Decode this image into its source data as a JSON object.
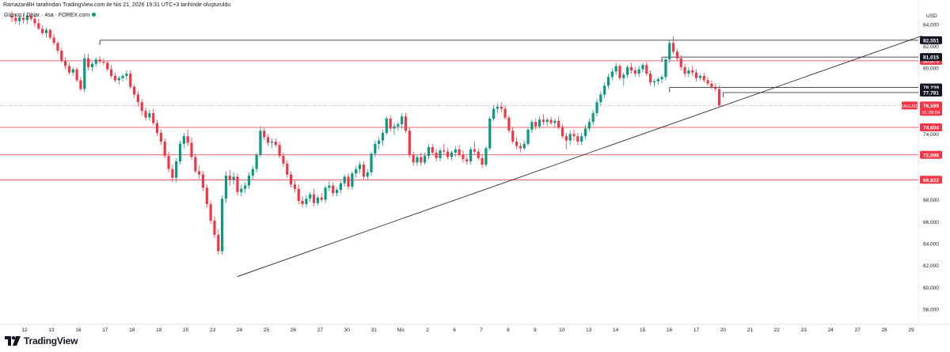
{
  "header": {
    "attribution": "RamazanBH tarafından TradingView.com ile Nis 21, 2026 19:31 UTC+3 tarihinde oluşturuldu",
    "symbol_line": "Gümüş / Dolar · 4sa · FOREX.com"
  },
  "footer": {
    "brand": "TradingView"
  },
  "chart_data": {
    "type": "candlestick",
    "currency_label": "USD",
    "ylim": [
      57000,
      85500
    ],
    "y_ticks": [
      58000,
      60000,
      62000,
      64000,
      66000,
      68000,
      70000,
      72000,
      74000,
      76000,
      78000,
      80000,
      82000,
      84000
    ],
    "y_tick_labels": [
      "58,000",
      "60,000",
      "62,000",
      "64,000",
      "66,000",
      "68,000",
      "70,000",
      "72,000",
      "74,000",
      "76,000",
      "78,000",
      "80,000",
      "82,000",
      "84,000"
    ],
    "x_labels": [
      "12",
      "13",
      "16",
      "17",
      "18",
      "19",
      "20",
      "23",
      "24",
      "25",
      "26",
      "27",
      "30",
      "31",
      "Nis",
      "2",
      "6",
      "7",
      "8",
      "9",
      "10",
      "13",
      "14",
      "15",
      "16",
      "17",
      "20",
      "21",
      "22",
      "23",
      "24",
      "27",
      "28",
      "29"
    ],
    "ohlc": [
      [
        84800,
        85200,
        84200,
        84600
      ],
      [
        84600,
        84900,
        84000,
        84300
      ],
      [
        84300,
        84800,
        83900,
        84600
      ],
      [
        84600,
        85000,
        84100,
        84400
      ],
      [
        84400,
        84900,
        84000,
        84800
      ],
      [
        84800,
        85100,
        84300,
        84500
      ],
      [
        84500,
        84800,
        83800,
        84100
      ],
      [
        84100,
        84500,
        83500,
        83600
      ],
      [
        83600,
        83900,
        83000,
        83200
      ],
      [
        83200,
        83700,
        82800,
        83500
      ],
      [
        83500,
        83600,
        82600,
        82800
      ],
      [
        82800,
        83100,
        82100,
        82300
      ],
      [
        82300,
        82500,
        81300,
        81600
      ],
      [
        81600,
        81900,
        80500,
        80700
      ],
      [
        80700,
        81000,
        79900,
        80200
      ],
      [
        80200,
        80500,
        79400,
        79600
      ],
      [
        79600,
        80100,
        79300,
        79900
      ],
      [
        79900,
        80100,
        78700,
        78900
      ],
      [
        78900,
        79200,
        77900,
        78100
      ],
      [
        78100,
        81300,
        77800,
        80900
      ],
      [
        80900,
        81300,
        79800,
        80100
      ],
      [
        80100,
        80600,
        79700,
        80400
      ],
      [
        80400,
        81000,
        80100,
        80800
      ],
      [
        80800,
        81100,
        80400,
        80600
      ],
      [
        80600,
        80900,
        80300,
        80500
      ],
      [
        80500,
        80700,
        79700,
        79900
      ],
      [
        79900,
        80300,
        79100,
        79300
      ],
      [
        79300,
        79600,
        78700,
        78900
      ],
      [
        78900,
        79300,
        78500,
        79100
      ],
      [
        79100,
        79500,
        78800,
        79300
      ],
      [
        79300,
        79800,
        78900,
        79500
      ],
      [
        79500,
        79800,
        78100,
        78300
      ],
      [
        78300,
        78500,
        77300,
        77600
      ],
      [
        77600,
        77900,
        76500,
        76900
      ],
      [
        76900,
        77200,
        75700,
        76100
      ],
      [
        76100,
        76400,
        75200,
        75500
      ],
      [
        75500,
        76200,
        75200,
        75900
      ],
      [
        75900,
        76300,
        74800,
        75000
      ],
      [
        75000,
        75300,
        73800,
        74100
      ],
      [
        74100,
        74400,
        73000,
        73300
      ],
      [
        73300,
        73600,
        71800,
        72000
      ],
      [
        72000,
        72400,
        70500,
        70800
      ],
      [
        70800,
        71200,
        69600,
        70000
      ],
      [
        70000,
        71800,
        69600,
        71500
      ],
      [
        71500,
        73400,
        71200,
        73100
      ],
      [
        73100,
        74100,
        72700,
        73800
      ],
      [
        73800,
        74400,
        72900,
        73200
      ],
      [
        73200,
        73700,
        71600,
        71900
      ],
      [
        71900,
        72200,
        70400,
        70600
      ],
      [
        70600,
        71100,
        69900,
        70300
      ],
      [
        70300,
        70600,
        68800,
        69100
      ],
      [
        69100,
        69400,
        67300,
        67600
      ],
      [
        67600,
        67900,
        65800,
        66100
      ],
      [
        66100,
        66500,
        64500,
        64800
      ],
      [
        64800,
        65300,
        63000,
        63300
      ],
      [
        63300,
        68400,
        63000,
        68100
      ],
      [
        68100,
        70600,
        67700,
        70200
      ],
      [
        70200,
        70700,
        69300,
        69800
      ],
      [
        69800,
        70500,
        69400,
        70100
      ],
      [
        70100,
        70400,
        68400,
        68700
      ],
      [
        68700,
        69400,
        68300,
        69000
      ],
      [
        69000,
        69600,
        68600,
        69300
      ],
      [
        69300,
        70500,
        69000,
        70200
      ],
      [
        70200,
        71100,
        69800,
        70800
      ],
      [
        70800,
        72300,
        70500,
        72100
      ],
      [
        72100,
        74700,
        71900,
        74300
      ],
      [
        74300,
        74600,
        73400,
        73700
      ],
      [
        73700,
        74000,
        72900,
        73200
      ],
      [
        73200,
        73600,
        72700,
        73300
      ],
      [
        73300,
        73600,
        72800,
        73000
      ],
      [
        73000,
        73300,
        71800,
        72000
      ],
      [
        72000,
        72300,
        71000,
        71300
      ],
      [
        71300,
        71600,
        70000,
        70300
      ],
      [
        70300,
        70600,
        69100,
        69400
      ],
      [
        69400,
        69800,
        68700,
        69000
      ],
      [
        69000,
        69400,
        67600,
        67900
      ],
      [
        67900,
        68300,
        67300,
        67600
      ],
      [
        67600,
        68400,
        67300,
        68100
      ],
      [
        68100,
        68700,
        67800,
        68500
      ],
      [
        68500,
        69000,
        67400,
        67700
      ],
      [
        67700,
        68400,
        67500,
        68200
      ],
      [
        68200,
        68600,
        67800,
        68000
      ],
      [
        68000,
        69300,
        67700,
        69100
      ],
      [
        69100,
        69700,
        68800,
        69300
      ],
      [
        69300,
        69600,
        68300,
        68600
      ],
      [
        68600,
        69100,
        68300,
        68900
      ],
      [
        68900,
        69700,
        68600,
        69500
      ],
      [
        69500,
        70300,
        69200,
        70100
      ],
      [
        70100,
        70400,
        68900,
        69200
      ],
      [
        69200,
        70600,
        68900,
        70400
      ],
      [
        70400,
        71100,
        70000,
        70800
      ],
      [
        70800,
        71500,
        70400,
        71200
      ],
      [
        71200,
        71500,
        69800,
        70100
      ],
      [
        70100,
        70800,
        69800,
        70500
      ],
      [
        70500,
        72400,
        70200,
        72200
      ],
      [
        72200,
        73400,
        71900,
        73100
      ],
      [
        73100,
        73700,
        72600,
        73400
      ],
      [
        73400,
        74400,
        72900,
        74100
      ],
      [
        74100,
        75600,
        73900,
        75400
      ],
      [
        75400,
        75700,
        74200,
        74500
      ],
      [
        74500,
        75000,
        73900,
        74700
      ],
      [
        74700,
        75100,
        74300,
        74900
      ],
      [
        74900,
        75900,
        74500,
        75600
      ],
      [
        75600,
        75900,
        74100,
        74300
      ],
      [
        74300,
        74600,
        71800,
        72100
      ],
      [
        72100,
        72400,
        71100,
        71400
      ],
      [
        71400,
        72100,
        71100,
        71900
      ],
      [
        71900,
        72300,
        71100,
        71400
      ],
      [
        71400,
        72300,
        71200,
        72000
      ],
      [
        72000,
        73100,
        71700,
        72800
      ],
      [
        72800,
        73100,
        72100,
        72300
      ],
      [
        72300,
        72600,
        71500,
        71800
      ],
      [
        71800,
        72700,
        71500,
        72500
      ],
      [
        72500,
        73100,
        72100,
        72400
      ],
      [
        72400,
        72700,
        71700,
        71900
      ],
      [
        71900,
        72500,
        71600,
        72300
      ],
      [
        72300,
        72900,
        71900,
        72600
      ],
      [
        72600,
        73000,
        71900,
        72100
      ],
      [
        72100,
        72500,
        71400,
        71700
      ],
      [
        71700,
        72000,
        71200,
        71500
      ],
      [
        71500,
        72800,
        71200,
        72600
      ],
      [
        72600,
        73300,
        72100,
        72400
      ],
      [
        72400,
        72700,
        71600,
        71800
      ],
      [
        71800,
        72100,
        70900,
        71200
      ],
      [
        71200,
        72900,
        71000,
        72700
      ],
      [
        72700,
        75600,
        72500,
        75400
      ],
      [
        75400,
        76600,
        75200,
        76300
      ],
      [
        76300,
        76800,
        75900,
        76500
      ],
      [
        76500,
        76900,
        76000,
        76300
      ],
      [
        76300,
        76600,
        75300,
        75500
      ],
      [
        75500,
        75700,
        74100,
        74300
      ],
      [
        74300,
        74600,
        73100,
        73300
      ],
      [
        73300,
        73700,
        72600,
        72900
      ],
      [
        72900,
        73200,
        72300,
        72700
      ],
      [
        72700,
        73400,
        72500,
        73100
      ],
      [
        73100,
        74600,
        72900,
        74400
      ],
      [
        74400,
        75300,
        74100,
        75100
      ],
      [
        75100,
        75400,
        74400,
        74700
      ],
      [
        74700,
        75600,
        74500,
        75300
      ],
      [
        75300,
        75800,
        74800,
        75100
      ],
      [
        75100,
        75500,
        74700,
        75300
      ],
      [
        75300,
        75600,
        74800,
        75000
      ],
      [
        75000,
        75400,
        74600,
        75200
      ],
      [
        75200,
        75600,
        74400,
        74600
      ],
      [
        74600,
        74900,
        73600,
        73800
      ],
      [
        73800,
        74100,
        72600,
        73400
      ],
      [
        73400,
        74300,
        73000,
        74000
      ],
      [
        74000,
        74400,
        73400,
        73800
      ],
      [
        73800,
        74100,
        73000,
        73300
      ],
      [
        73300,
        74100,
        73000,
        73800
      ],
      [
        73800,
        74800,
        73500,
        74500
      ],
      [
        74500,
        75400,
        74200,
        75100
      ],
      [
        75100,
        76200,
        74800,
        75900
      ],
      [
        75900,
        77200,
        75600,
        76900
      ],
      [
        76900,
        77900,
        76600,
        77600
      ],
      [
        77600,
        78700,
        77300,
        78400
      ],
      [
        78400,
        79500,
        78100,
        79200
      ],
      [
        79200,
        80000,
        78900,
        79700
      ],
      [
        79700,
        80500,
        79400,
        80200
      ],
      [
        80200,
        80400,
        78900,
        79100
      ],
      [
        79100,
        79600,
        78400,
        79400
      ],
      [
        79400,
        80300,
        79100,
        80100
      ],
      [
        80100,
        80500,
        79500,
        79800
      ],
      [
        79800,
        80100,
        79200,
        79500
      ],
      [
        79500,
        80200,
        79200,
        79900
      ],
      [
        79900,
        80500,
        79600,
        80300
      ],
      [
        80300,
        80600,
        79300,
        79500
      ],
      [
        79500,
        79800,
        78400,
        78700
      ],
      [
        78700,
        79000,
        78300,
        78800
      ],
      [
        78800,
        79200,
        78500,
        79000
      ],
      [
        79000,
        79400,
        78600,
        79200
      ],
      [
        79200,
        81000,
        78900,
        80800
      ],
      [
        80800,
        82600,
        80500,
        82300
      ],
      [
        82300,
        82900,
        81300,
        81500
      ],
      [
        81500,
        81800,
        80700,
        80900
      ],
      [
        80900,
        81200,
        79800,
        80100
      ],
      [
        80100,
        80400,
        79200,
        79500
      ],
      [
        79500,
        80100,
        79200,
        79800
      ],
      [
        79800,
        80200,
        79300,
        79600
      ],
      [
        79600,
        79900,
        78800,
        79100
      ],
      [
        79100,
        79500,
        78900,
        79300
      ],
      [
        79300,
        79600,
        78700,
        78900
      ],
      [
        78900,
        79200,
        78400,
        78600
      ],
      [
        78600,
        78900,
        78100,
        78300
      ],
      [
        78300,
        78600,
        77900,
        78100
      ],
      [
        78100,
        78400,
        76400,
        76600
      ]
    ],
    "horizontal_lines": [
      {
        "label": "74,604",
        "value": 74604,
        "color": "#f23645"
      },
      {
        "label": "72,096",
        "value": 72096,
        "color": "#f23645"
      },
      {
        "label": "69,822",
        "value": 69822,
        "color": "#f23645"
      },
      {
        "label": "80,675",
        "value": 80675,
        "color": "#f23645"
      }
    ],
    "level_boxes": [
      {
        "label": "82,551",
        "value": 82551,
        "from": 23
      },
      {
        "label": "81,015",
        "value": 81015,
        "from": 170
      },
      {
        "label": "78,239",
        "value": 78239,
        "from": 172
      },
      {
        "label": "77,781",
        "value": 77781,
        "from": 186
      }
    ],
    "price_tag": {
      "symbol": "XAGUSD",
      "price": "76,599",
      "countdown": "01:28:04",
      "value": 76599
    },
    "trendline": {
      "from": [
        59,
        61000
      ],
      "to": [
        238,
        82950
      ]
    },
    "colors": {
      "up": "#089981",
      "down": "#f23645",
      "grid_text": "#131722",
      "hline": "#131722"
    }
  }
}
